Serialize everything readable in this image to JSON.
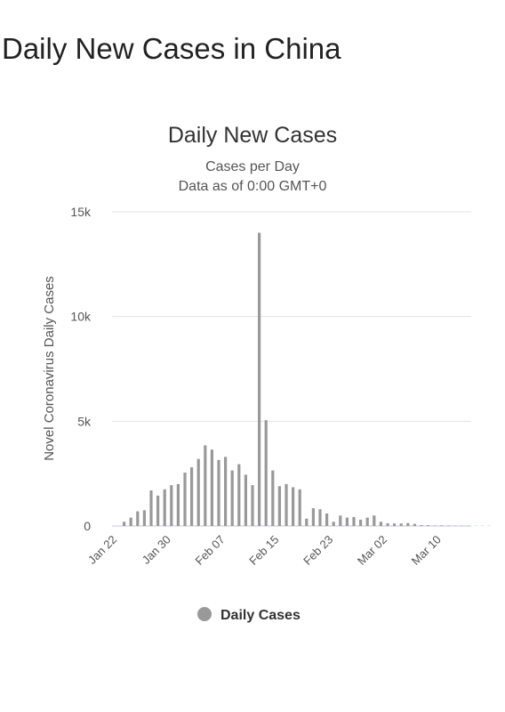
{
  "page": {
    "title": "Daily New Cases in China"
  },
  "colors": {
    "bar": "#999999",
    "legend_marker": "#999999",
    "baseline": "#c9d6e8",
    "grid": "#e3e3e3"
  },
  "chart_data": {
    "type": "bar",
    "title": "Daily New Cases",
    "subtitle_lines": [
      "Cases per Day",
      "Data as of 0:00 GMT+0"
    ],
    "ylabel": "Novel Coronavirus Daily Cases",
    "xlabel": "",
    "ylim": [
      0,
      15000
    ],
    "y_ticks": [
      0,
      5000,
      10000,
      15000
    ],
    "y_tick_labels": [
      "0",
      "5k",
      "10k",
      "15k"
    ],
    "x_tick_labels": [
      "Jan 22",
      "Jan 30",
      "Feb 07",
      "Feb 15",
      "Feb 23",
      "Mar 02",
      "Mar 10"
    ],
    "grid": true,
    "legend": {
      "position": "bottom",
      "entries": [
        "Daily Cases"
      ]
    },
    "series": [
      {
        "name": "Daily Cases",
        "categories": [
          "Jan 22",
          "Jan 23",
          "Jan 24",
          "Jan 25",
          "Jan 26",
          "Jan 27",
          "Jan 28",
          "Jan 29",
          "Jan 30",
          "Jan 31",
          "Feb 01",
          "Feb 02",
          "Feb 03",
          "Feb 04",
          "Feb 05",
          "Feb 06",
          "Feb 07",
          "Feb 08",
          "Feb 09",
          "Feb 10",
          "Feb 11",
          "Feb 12",
          "Feb 13",
          "Feb 14",
          "Feb 15",
          "Feb 16",
          "Feb 17",
          "Feb 18",
          "Feb 19",
          "Feb 20",
          "Feb 21",
          "Feb 22",
          "Feb 23",
          "Feb 24",
          "Feb 25",
          "Feb 26",
          "Feb 27",
          "Feb 28",
          "Feb 29",
          "Mar 01",
          "Mar 02",
          "Mar 03",
          "Mar 04",
          "Mar 05",
          "Mar 06",
          "Mar 07",
          "Mar 08",
          "Mar 09",
          "Mar 10",
          "Mar 11",
          "Mar 12",
          "Mar 13",
          "Mar 14",
          "Mar 15",
          "Mar 16",
          "Mar 17"
        ],
        "values": [
          0,
          200,
          400,
          700,
          750,
          1700,
          1450,
          1750,
          1950,
          2000,
          2550,
          2800,
          3200,
          3850,
          3650,
          3150,
          3300,
          2650,
          2950,
          2450,
          1950,
          14000,
          5050,
          2650,
          1900,
          2000,
          1850,
          1750,
          350,
          850,
          800,
          600,
          200,
          500,
          400,
          430,
          300,
          400,
          500,
          200,
          130,
          120,
          120,
          140,
          100,
          40,
          40,
          20,
          30,
          20,
          10,
          10,
          10,
          10,
          10,
          10
        ]
      }
    ]
  }
}
